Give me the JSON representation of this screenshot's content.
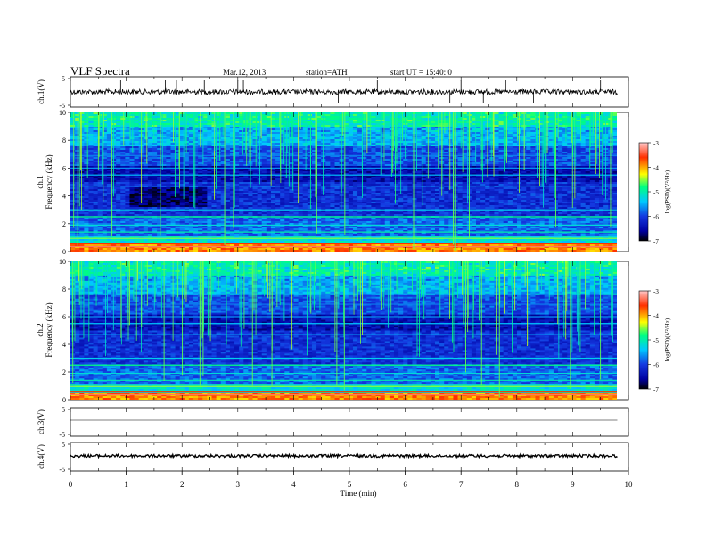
{
  "header": {
    "title": "VLF  Spectra",
    "date": "Mar.12, 2013",
    "station": "station=ATH",
    "start": "start  UT  =    15:40: 0"
  },
  "chart_data": [
    {
      "type": "line",
      "id": "ch1-waveform",
      "ylabel": "ch.1(V)",
      "ylim": [
        -5,
        5
      ],
      "yticks": [
        "5",
        "-5"
      ],
      "xlim": [
        0,
        10
      ],
      "xlabel": "",
      "baseline": 0,
      "spike_times_min": [
        0.9,
        1.7,
        1.9,
        2.4,
        3.0,
        3.1,
        4.8,
        5.5,
        6.8,
        7.0,
        7.4,
        7.8,
        8.3,
        9.5
      ]
    },
    {
      "type": "heatmap",
      "id": "ch1-spectrogram",
      "ylabel": "ch.1\nFrequency  (kHz)",
      "ylabel_lines": [
        "ch.1",
        "Frequency  (kHz)"
      ],
      "ylim": [
        0,
        10
      ],
      "yticks": [
        "0",
        "2",
        "4",
        "6",
        "8",
        "10"
      ],
      "xlim": [
        0,
        9.8
      ],
      "colorbar": {
        "label": "log(PSD)(V²/Hz)",
        "range": [
          -7,
          -3
        ],
        "ticks": [
          "-3",
          "-4",
          "-5",
          "-6",
          "-7"
        ]
      }
    },
    {
      "type": "heatmap",
      "id": "ch2-spectrogram",
      "ylabel": "ch.2\nFrequency  (kHz)",
      "ylabel_lines": [
        "ch.2",
        "Frequency  (kHz)"
      ],
      "ylim": [
        0,
        10
      ],
      "yticks": [
        "0",
        "2",
        "4",
        "6",
        "8",
        "10"
      ],
      "xlim": [
        0,
        9.8
      ],
      "colorbar": {
        "label": "log(PSD)(V²/Hz)",
        "range": [
          -7,
          -3
        ],
        "ticks": [
          "-3",
          "-4",
          "-5",
          "-6",
          "-7"
        ]
      }
    },
    {
      "type": "line",
      "id": "ch3-waveform",
      "ylabel": "ch.3(V)",
      "ylim": [
        -5,
        5
      ],
      "yticks": [
        "5",
        "-5"
      ],
      "xlim": [
        0,
        10
      ],
      "baseline": 0
    },
    {
      "type": "line",
      "id": "ch4-waveform",
      "ylabel": "ch.4(V)",
      "ylim": [
        -5,
        5
      ],
      "yticks": [
        "5",
        "-5"
      ],
      "xlim": [
        0,
        10
      ],
      "baseline": 0
    }
  ],
  "xaxis": {
    "label": "Time  (min)",
    "range": [
      0,
      10
    ],
    "ticks": [
      "0",
      "1",
      "2",
      "3",
      "4",
      "5",
      "6",
      "7",
      "8",
      "9",
      "10"
    ]
  },
  "colors": {
    "colormap": [
      "#000000",
      "#0000a0",
      "#1438e0",
      "#00c8ff",
      "#00ff80",
      "#ffff00",
      "#ff3000",
      "#ffc0c0"
    ]
  }
}
